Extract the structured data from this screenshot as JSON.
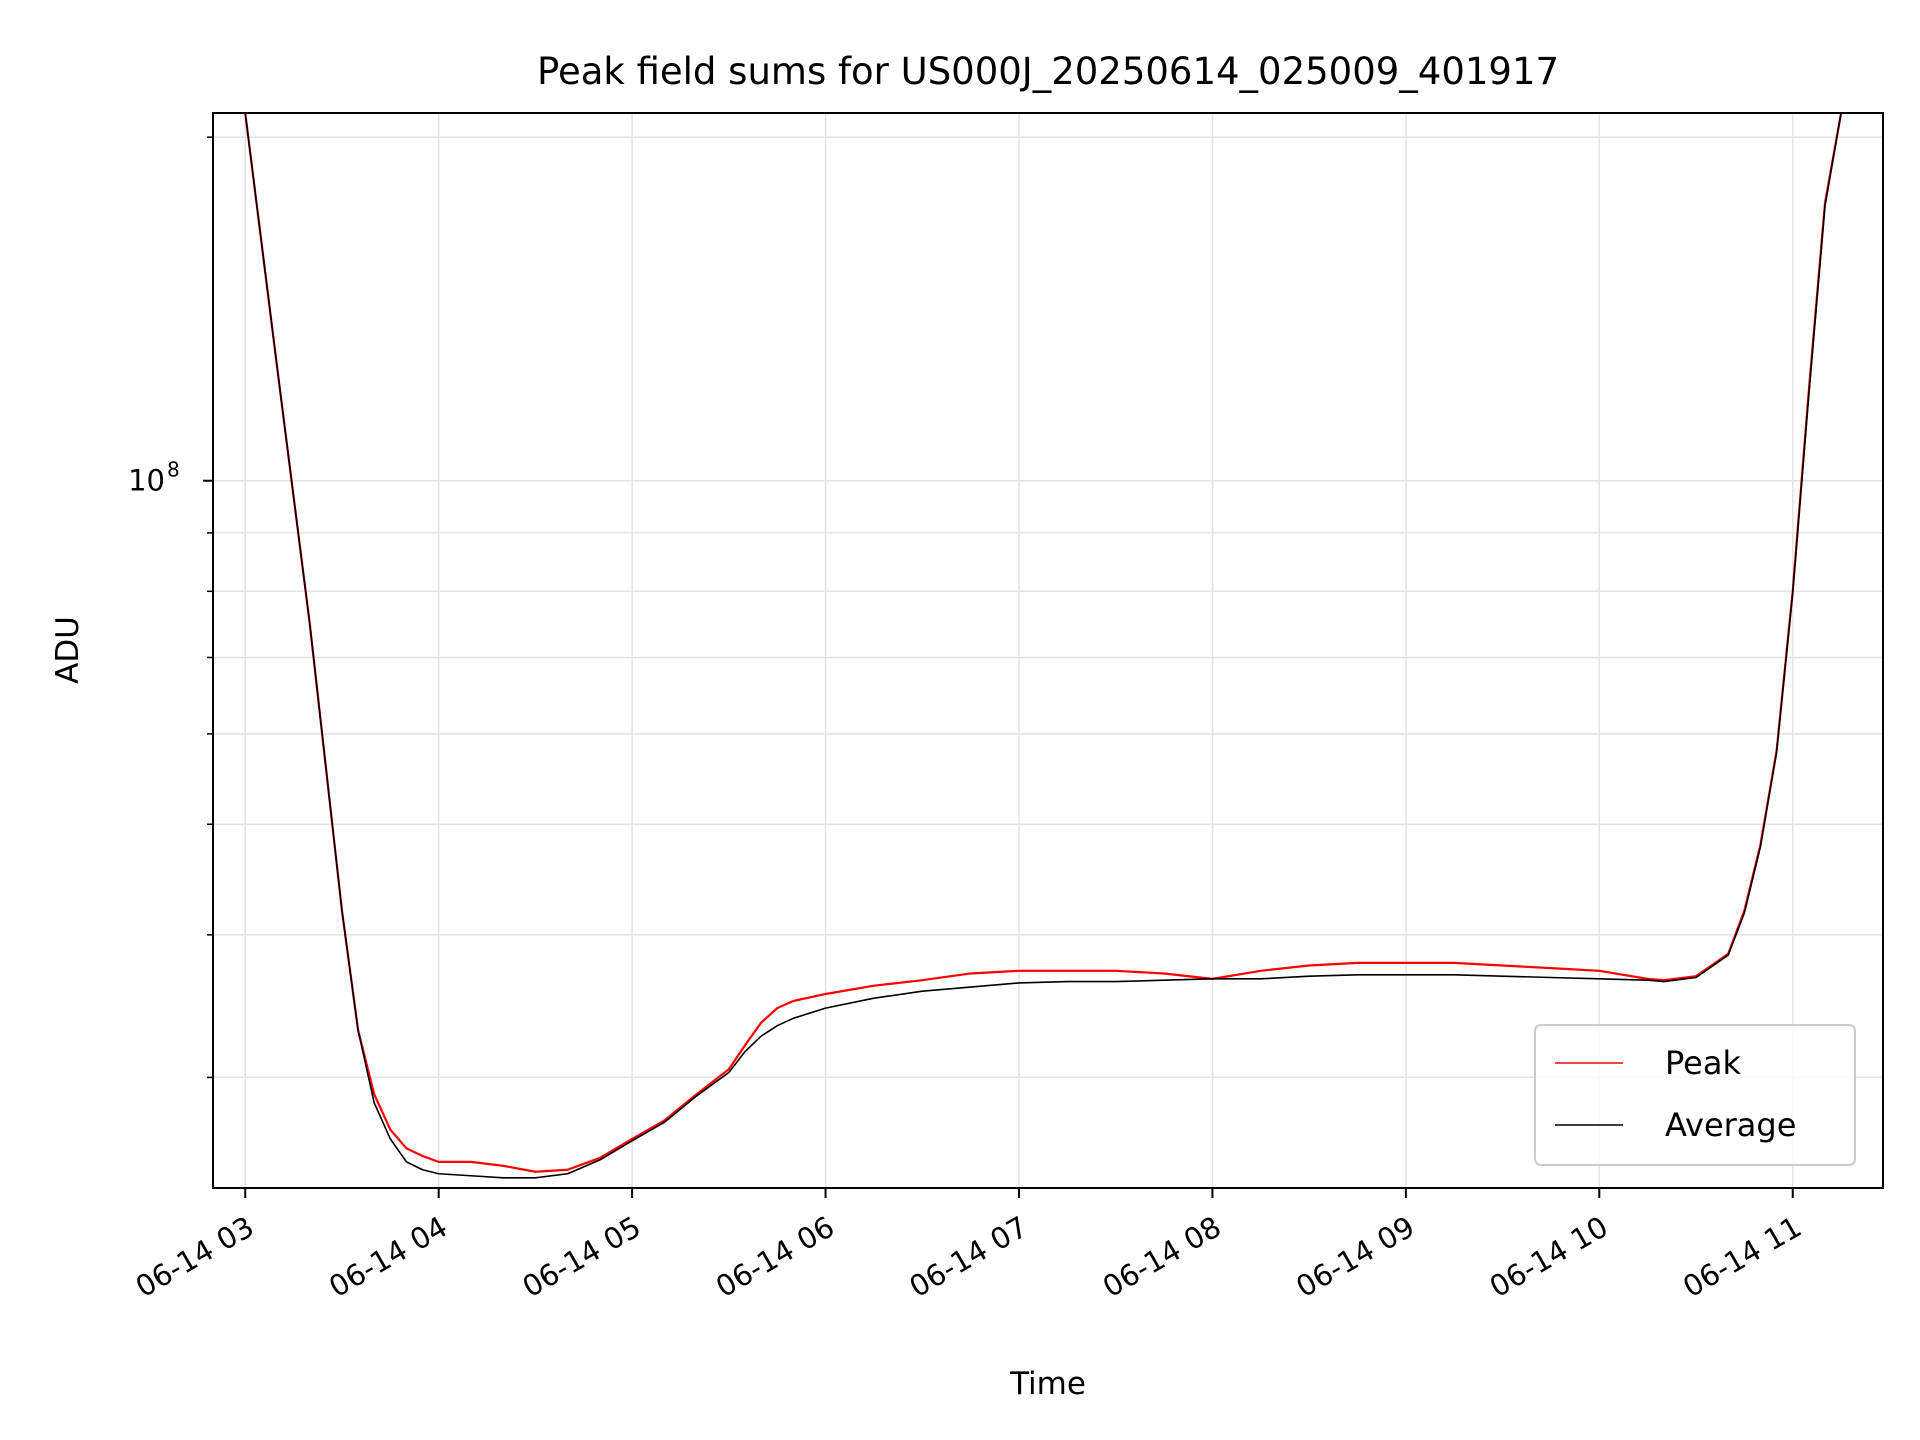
{
  "chart_data": {
    "type": "line",
    "title": "Peak field sums for US000J_20250614_025009_401917",
    "xlabel": "Time",
    "ylabel": "ADU",
    "x_unit": "time of day on 06-14 (hours)",
    "xlim": [
      "06-14 02:50",
      "06-14 11:28"
    ],
    "ylim": [
      24000000,
      210000000
    ],
    "yscale": "log",
    "grid": true,
    "legend_position": "lower right",
    "x_ticks": [
      "06-14 03",
      "06-14 04",
      "06-14 05",
      "06-14 06",
      "06-14 07",
      "06-14 08",
      "06-14 09",
      "06-14 10",
      "06-14 11"
    ],
    "y_major_ticks": [
      {
        "value": 100000000,
        "base": "10",
        "exp": "8"
      }
    ],
    "y_minor_ticks": [
      30000000,
      40000000,
      50000000,
      60000000,
      70000000,
      80000000,
      90000000,
      200000000
    ],
    "x": [
      "03:00",
      "03:10",
      "03:20",
      "03:30",
      "03:35",
      "03:40",
      "03:45",
      "03:50",
      "03:55",
      "04:00",
      "04:10",
      "04:20",
      "04:30",
      "04:40",
      "04:50",
      "05:00",
      "05:10",
      "05:20",
      "05:30",
      "05:35",
      "05:40",
      "05:45",
      "05:50",
      "06:00",
      "06:15",
      "06:30",
      "06:45",
      "07:00",
      "07:15",
      "07:30",
      "07:45",
      "08:00",
      "08:15",
      "08:30",
      "08:45",
      "09:00",
      "09:15",
      "09:30",
      "09:45",
      "10:00",
      "10:15",
      "10:20",
      "10:30",
      "10:40",
      "10:45",
      "10:50",
      "10:55",
      "11:00",
      "11:05",
      "11:10",
      "11:15"
    ],
    "series": [
      {
        "name": "Peak",
        "color": "#ff0000",
        "values": [
          210000000,
          125000000,
          75000000,
          42000000,
          33000000,
          29000000,
          27000000,
          26000000,
          25600000,
          25300000,
          25300000,
          25100000,
          24800000,
          24900000,
          25500000,
          26500000,
          27500000,
          29000000,
          30500000,
          32000000,
          33500000,
          34500000,
          35000000,
          35500000,
          36100000,
          36500000,
          37000000,
          37200000,
          37200000,
          37200000,
          37000000,
          36600000,
          37200000,
          37600000,
          37800000,
          37800000,
          37800000,
          37600000,
          37400000,
          37200000,
          36600000,
          36500000,
          36800000,
          38500000,
          42000000,
          48000000,
          58000000,
          80000000,
          120000000,
          175000000,
          210000000
        ]
      },
      {
        "name": "Average",
        "color": "#000000",
        "values": [
          210000000,
          125000000,
          75000000,
          42000000,
          33000000,
          28500000,
          26500000,
          25300000,
          24900000,
          24700000,
          24600000,
          24500000,
          24500000,
          24700000,
          25400000,
          26400000,
          27400000,
          28900000,
          30300000,
          31600000,
          32600000,
          33300000,
          33800000,
          34500000,
          35200000,
          35700000,
          36000000,
          36300000,
          36400000,
          36400000,
          36500000,
          36600000,
          36600000,
          36800000,
          36900000,
          36900000,
          36900000,
          36800000,
          36700000,
          36600000,
          36500000,
          36400000,
          36700000,
          38400000,
          41800000,
          47800000,
          57800000,
          79800000,
          119000000,
          174000000,
          210000000
        ]
      }
    ]
  }
}
